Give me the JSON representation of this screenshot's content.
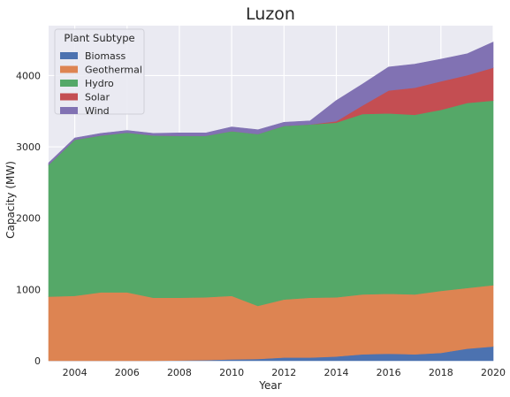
{
  "chart_data": {
    "type": "area",
    "stacked": true,
    "title": "Luzon",
    "xlabel": "Year",
    "ylabel": "Capacity (MW)",
    "xlim": [
      2003,
      2020
    ],
    "ylim": [
      0,
      4700
    ],
    "x_ticks": [
      2004,
      2006,
      2008,
      2010,
      2012,
      2014,
      2016,
      2018,
      2020
    ],
    "y_ticks": [
      0,
      1000,
      2000,
      3000,
      4000
    ],
    "grid": true,
    "background": "#eaeaf2",
    "legend": {
      "title": "Plant Subtype",
      "position": "top-left"
    },
    "x": [
      2003,
      2004,
      2005,
      2006,
      2007,
      2008,
      2009,
      2010,
      2011,
      2012,
      2013,
      2014,
      2015,
      2016,
      2017,
      2018,
      2019,
      2020
    ],
    "series": [
      {
        "name": "Biomass",
        "color": "#4c72b0",
        "values": [
          0,
          0,
          0,
          0,
          0,
          5,
          10,
          20,
          25,
          45,
          45,
          60,
          90,
          100,
          90,
          110,
          170,
          200
        ]
      },
      {
        "name": "Geothermal",
        "color": "#dd8452",
        "values": [
          900,
          910,
          960,
          960,
          885,
          880,
          880,
          890,
          745,
          815,
          840,
          830,
          840,
          840,
          840,
          870,
          850,
          860
        ]
      },
      {
        "name": "Hydro",
        "color": "#55a868",
        "values": [
          1850,
          2190,
          2200,
          2240,
          2275,
          2270,
          2265,
          2310,
          2410,
          2435,
          2430,
          2450,
          2530,
          2530,
          2520,
          2540,
          2595,
          2590
        ]
      },
      {
        "name": "Solar",
        "color": "#c44e52",
        "values": [
          0,
          0,
          0,
          0,
          0,
          0,
          0,
          0,
          0,
          0,
          0,
          20,
          120,
          320,
          380,
          400,
          390,
          460
        ]
      },
      {
        "name": "Wind",
        "color": "#8172b3",
        "values": [
          25,
          25,
          30,
          30,
          30,
          40,
          40,
          60,
          60,
          50,
          50,
          290,
          300,
          330,
          330,
          310,
          300,
          360
        ]
      }
    ]
  }
}
